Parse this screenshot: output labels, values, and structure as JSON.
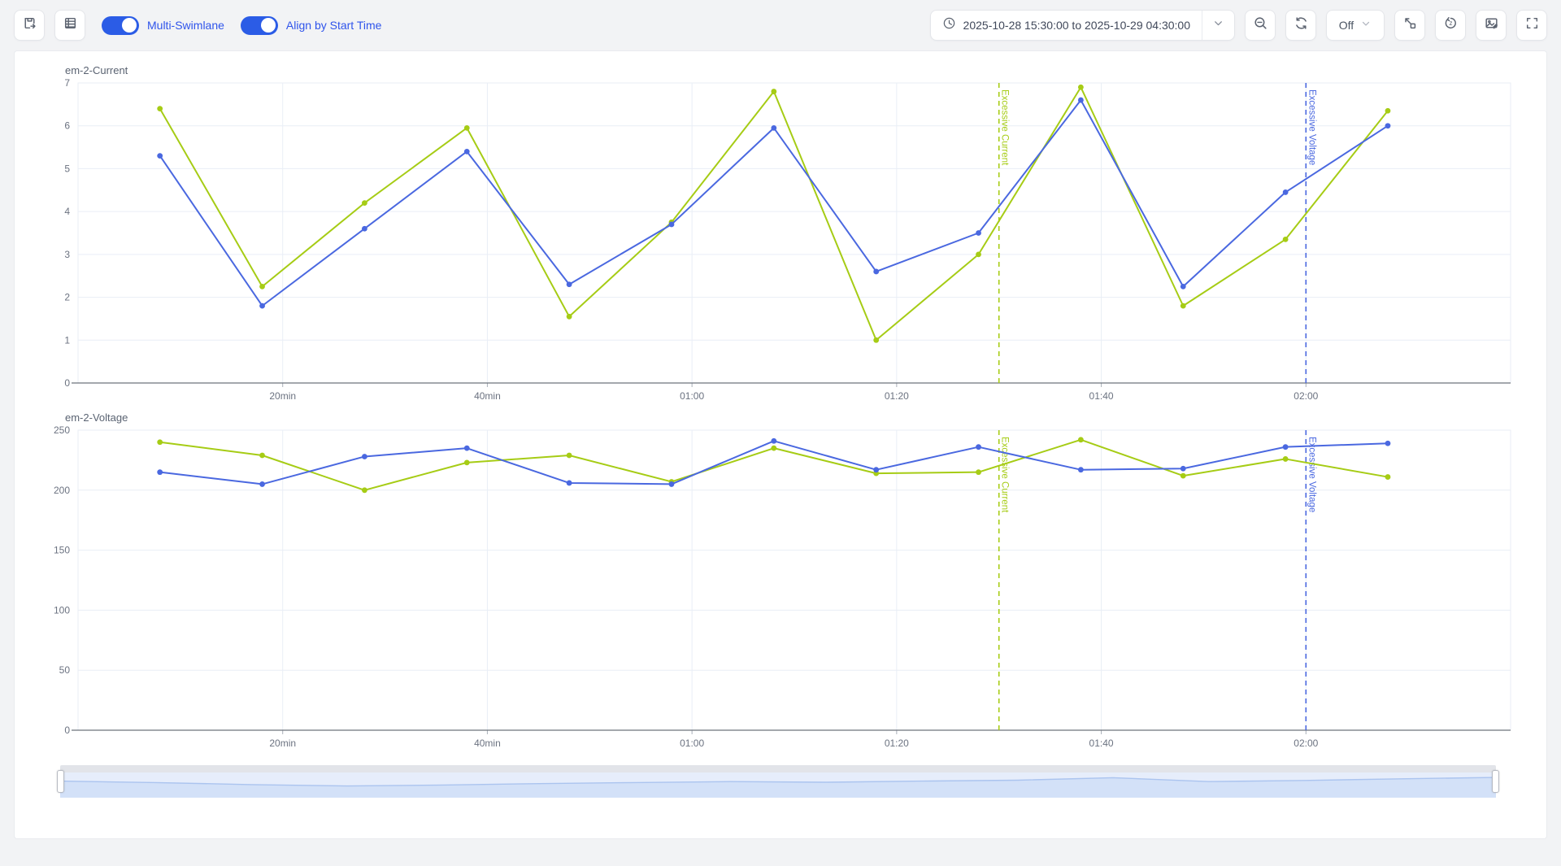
{
  "toolbar": {
    "left_icons": [
      "export-icon",
      "table-view-icon"
    ],
    "toggles": [
      {
        "label": "Multi-Swimlane",
        "on": true
      },
      {
        "label": "Align by Start Time",
        "on": true
      }
    ],
    "time_range": {
      "value": "2025-10-28 15:30:00 to 2025-10-29 04:30:00"
    },
    "refresh_interval": {
      "value": "Off"
    },
    "right_icons": [
      "zoom-out-icon",
      "refresh-icon",
      "collapse-icon",
      "restore-icon",
      "save-image-icon",
      "fullscreen-icon"
    ]
  },
  "colors": {
    "accent_blue": "#2b5ce6",
    "label_blue": "#2f54eb",
    "series_green": "#a6cc15",
    "series_blue": "#4a68e0",
    "grid": "#e9eef6",
    "axis": "#6e737c",
    "tick_text": "#6b7280",
    "page_bg": "#f2f3f5"
  },
  "chart_data": [
    {
      "type": "line",
      "title": "em-2-Current",
      "x_unit": "minutes",
      "x_max": 140,
      "x": [
        8,
        18,
        28,
        38,
        48,
        58,
        68,
        78,
        88,
        98,
        108,
        118,
        128
      ],
      "x_ticks": [
        {
          "v": 20,
          "label": "20min"
        },
        {
          "v": 40,
          "label": "40min"
        },
        {
          "v": 60,
          "label": "01:00"
        },
        {
          "v": 80,
          "label": "01:20"
        },
        {
          "v": 100,
          "label": "01:40"
        },
        {
          "v": 120,
          "label": "02:00"
        }
      ],
      "ylim": [
        0,
        7
      ],
      "y_ticks": [
        0,
        1,
        2,
        3,
        4,
        5,
        6,
        7
      ],
      "series": [
        {
          "color": "#a6cc15",
          "values": [
            6.4,
            2.25,
            4.2,
            5.95,
            1.55,
            3.75,
            6.8,
            1.0,
            3.0,
            6.9,
            1.8,
            3.35,
            6.35
          ]
        },
        {
          "color": "#4a68e0",
          "values": [
            5.3,
            1.8,
            3.6,
            5.4,
            2.3,
            3.7,
            5.95,
            2.6,
            3.5,
            6.6,
            2.25,
            4.45,
            6.0
          ]
        }
      ],
      "thresholds": [
        {
          "x": 90,
          "label": "Excessive Current",
          "color": "#a6cc15"
        },
        {
          "x": 120,
          "label": "Excessive Voltage",
          "color": "#4a68e0"
        }
      ],
      "grid": true,
      "legend": "none"
    },
    {
      "type": "line",
      "title": "em-2-Voltage",
      "x_unit": "minutes",
      "x_max": 140,
      "x": [
        8,
        18,
        28,
        38,
        48,
        58,
        68,
        78,
        88,
        98,
        108,
        118,
        128
      ],
      "x_ticks": [
        {
          "v": 20,
          "label": "20min"
        },
        {
          "v": 40,
          "label": "40min"
        },
        {
          "v": 60,
          "label": "01:00"
        },
        {
          "v": 80,
          "label": "01:20"
        },
        {
          "v": 100,
          "label": "01:40"
        },
        {
          "v": 120,
          "label": "02:00"
        }
      ],
      "ylim": [
        0,
        250
      ],
      "y_ticks": [
        0,
        50,
        100,
        150,
        200,
        250
      ],
      "series": [
        {
          "color": "#a6cc15",
          "values": [
            240,
            229,
            200,
            223,
            229,
            207,
            235,
            214,
            215,
            242,
            212,
            226,
            211
          ]
        },
        {
          "color": "#4a68e0",
          "values": [
            215,
            205,
            228,
            235,
            206,
            205,
            241,
            217,
            236,
            217,
            218,
            236,
            239
          ]
        }
      ],
      "thresholds": [
        {
          "x": 90,
          "label": "Excessive Current",
          "color": "#a6cc15"
        },
        {
          "x": 120,
          "label": "Excessive Voltage",
          "color": "#4a68e0"
        }
      ],
      "grid": true,
      "legend": "none"
    }
  ],
  "slider": {
    "preview": [
      0.55,
      0.45,
      0.3,
      0.2,
      0.27,
      0.37,
      0.45,
      0.52,
      0.47,
      0.55,
      0.62,
      0.8,
      0.52,
      0.6,
      0.72,
      0.82
    ]
  }
}
